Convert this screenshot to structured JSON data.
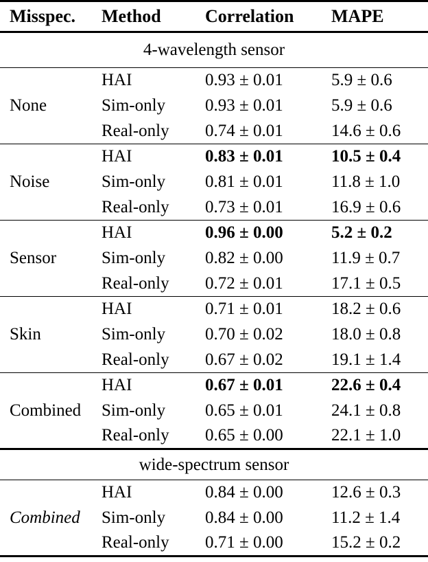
{
  "colors": {
    "text": "#000000",
    "background": "#ffffff",
    "rule": "#000000"
  },
  "table": {
    "columns": [
      "Misspec.",
      "Method",
      "Correlation",
      "MAPE"
    ],
    "sections": [
      {
        "title": "4-wavelength sensor",
        "groups": [
          {
            "misspec": "None",
            "misspec_italic": false,
            "rows": [
              {
                "method": "HAI",
                "correlation": "0.93 ± 0.01",
                "mape": "5.9 ± 0.6",
                "bold": false
              },
              {
                "method": "Sim-only",
                "correlation": "0.93 ± 0.01",
                "mape": "5.9 ± 0.6",
                "bold": false
              },
              {
                "method": "Real-only",
                "correlation": "0.74 ± 0.01",
                "mape": "14.6 ± 0.6",
                "bold": false
              }
            ]
          },
          {
            "misspec": "Noise",
            "misspec_italic": false,
            "rows": [
              {
                "method": "HAI",
                "correlation": "0.83 ± 0.01",
                "mape": "10.5 ± 0.4",
                "bold": true
              },
              {
                "method": "Sim-only",
                "correlation": "0.81 ± 0.01",
                "mape": "11.8 ± 1.0",
                "bold": false
              },
              {
                "method": "Real-only",
                "correlation": "0.73 ± 0.01",
                "mape": "16.9 ± 0.6",
                "bold": false
              }
            ]
          },
          {
            "misspec": "Sensor",
            "misspec_italic": false,
            "rows": [
              {
                "method": "HAI",
                "correlation": "0.96 ± 0.00",
                "mape": "5.2 ± 0.2",
                "bold": true
              },
              {
                "method": "Sim-only",
                "correlation": "0.82 ± 0.00",
                "mape": "11.9 ± 0.7",
                "bold": false
              },
              {
                "method": "Real-only",
                "correlation": "0.72 ± 0.01",
                "mape": "17.1 ± 0.5",
                "bold": false
              }
            ]
          },
          {
            "misspec": "Skin",
            "misspec_italic": false,
            "rows": [
              {
                "method": "HAI",
                "correlation": "0.71 ± 0.01",
                "mape": "18.2 ± 0.6",
                "bold": false
              },
              {
                "method": "Sim-only",
                "correlation": "0.70 ± 0.02",
                "mape": "18.0 ± 0.8",
                "bold": false
              },
              {
                "method": "Real-only",
                "correlation": "0.67 ± 0.02",
                "mape": "19.1 ± 1.4",
                "bold": false
              }
            ]
          },
          {
            "misspec": "Combined",
            "misspec_italic": false,
            "rows": [
              {
                "method": "HAI",
                "correlation": "0.67 ± 0.01",
                "mape": "22.6 ± 0.4",
                "bold": true
              },
              {
                "method": "Sim-only",
                "correlation": "0.65 ± 0.01",
                "mape": "24.1 ± 0.8",
                "bold": false
              },
              {
                "method": "Real-only",
                "correlation": "0.65 ± 0.00",
                "mape": "22.1 ± 1.0",
                "bold": false
              }
            ]
          }
        ]
      },
      {
        "title": "wide-spectrum sensor",
        "groups": [
          {
            "misspec": "Combined",
            "misspec_italic": true,
            "rows": [
              {
                "method": "HAI",
                "correlation": "0.84 ± 0.00",
                "mape": "12.6 ± 0.3",
                "bold": false
              },
              {
                "method": "Sim-only",
                "correlation": "0.84 ± 0.00",
                "mape": "11.2 ± 1.4",
                "bold": false
              },
              {
                "method": "Real-only",
                "correlation": "0.71 ± 0.00",
                "mape": "15.2 ± 0.2",
                "bold": false
              }
            ]
          }
        ]
      }
    ]
  }
}
